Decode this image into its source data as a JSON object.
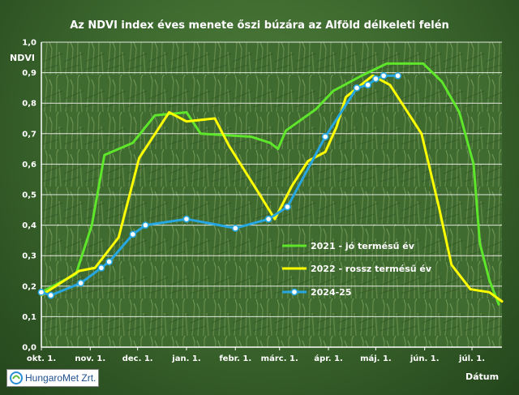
{
  "chart_data": {
    "type": "line",
    "title": "Az NDVI index éves menete őszi búzára az Alföld délkeleti felén",
    "ylabel": "NDVI",
    "xlabel": "Dátum",
    "ylim": [
      0,
      1
    ],
    "yticks": [
      "0,0",
      "0,1",
      "0,2",
      "0,3",
      "0,4",
      "0,5",
      "0,6",
      "0,7",
      "0,8",
      "0,9",
      "1,0"
    ],
    "xlim": [
      "2024-10-01",
      "2025-07-20"
    ],
    "xticks": [
      {
        "date": "2024-10-01",
        "label": "okt. 1."
      },
      {
        "date": "2024-11-01",
        "label": "nov. 1."
      },
      {
        "date": "2024-12-01",
        "label": "dec. 1."
      },
      {
        "date": "2025-01-01",
        "label": "jan. 1."
      },
      {
        "date": "2025-02-01",
        "label": "febr. 1."
      },
      {
        "date": "2025-03-01",
        "label": "márc. 1."
      },
      {
        "date": "2025-04-01",
        "label": "ápr. 1."
      },
      {
        "date": "2025-05-01",
        "label": "máj. 1."
      },
      {
        "date": "2025-06-01",
        "label": "jún. 1."
      },
      {
        "date": "2025-07-01",
        "label": "júl. 1."
      }
    ],
    "grid": true,
    "legend": "right",
    "series": [
      {
        "name": "2021 - jó termésű év",
        "color": "#5ee62a",
        "markers": false,
        "points": [
          [
            "2024-10-01",
            0.18
          ],
          [
            "2024-10-23",
            0.24
          ],
          [
            "2024-11-02",
            0.4
          ],
          [
            "2024-11-10",
            0.63
          ],
          [
            "2024-11-28",
            0.67
          ],
          [
            "2024-12-12",
            0.76
          ],
          [
            "2025-01-01",
            0.77
          ],
          [
            "2025-01-10",
            0.7
          ],
          [
            "2025-02-11",
            0.69
          ],
          [
            "2025-02-23",
            0.67
          ],
          [
            "2025-02-28",
            0.65
          ],
          [
            "2025-03-05",
            0.71
          ],
          [
            "2025-03-24",
            0.78
          ],
          [
            "2025-04-04",
            0.84
          ],
          [
            "2025-04-22",
            0.89
          ],
          [
            "2025-05-08",
            0.93
          ],
          [
            "2025-05-17",
            0.93
          ],
          [
            "2025-05-31",
            0.93
          ],
          [
            "2025-06-12",
            0.87
          ],
          [
            "2025-06-23",
            0.77
          ],
          [
            "2025-07-02",
            0.6
          ],
          [
            "2025-07-06",
            0.34
          ],
          [
            "2025-07-12",
            0.22
          ],
          [
            "2025-07-18",
            0.14
          ]
        ]
      },
      {
        "name": "2022 - rossz termésű év",
        "color": "#ffff00",
        "markers": false,
        "points": [
          [
            "2024-10-01",
            0.17
          ],
          [
            "2024-10-25",
            0.25
          ],
          [
            "2024-11-04",
            0.26
          ],
          [
            "2024-11-19",
            0.36
          ],
          [
            "2024-12-02",
            0.62
          ],
          [
            "2024-12-21",
            0.77
          ],
          [
            "2025-01-01",
            0.74
          ],
          [
            "2025-01-19",
            0.75
          ],
          [
            "2025-01-28",
            0.66
          ],
          [
            "2025-02-14",
            0.52
          ],
          [
            "2025-02-26",
            0.42
          ],
          [
            "2025-03-09",
            0.53
          ],
          [
            "2025-03-19",
            0.61
          ],
          [
            "2025-03-30",
            0.64
          ],
          [
            "2025-04-06",
            0.72
          ],
          [
            "2025-04-12",
            0.82
          ],
          [
            "2025-04-29",
            0.89
          ],
          [
            "2025-05-10",
            0.86
          ],
          [
            "2025-05-30",
            0.7
          ],
          [
            "2025-06-10",
            0.46
          ],
          [
            "2025-06-18",
            0.27
          ],
          [
            "2025-06-30",
            0.19
          ],
          [
            "2025-07-12",
            0.18
          ],
          [
            "2025-07-20",
            0.15
          ]
        ]
      },
      {
        "name": "2024-25",
        "color": "#27a7e1",
        "markers": true,
        "points": [
          [
            "2024-10-01",
            0.18
          ],
          [
            "2024-10-07",
            0.17
          ],
          [
            "2024-10-26",
            0.21
          ],
          [
            "2024-11-08",
            0.26
          ],
          [
            "2024-11-13",
            0.28
          ],
          [
            "2024-11-28",
            0.37
          ],
          [
            "2024-12-06",
            0.4
          ],
          [
            "2025-01-01",
            0.42
          ],
          [
            "2025-02-01",
            0.39
          ],
          [
            "2025-02-22",
            0.42
          ],
          [
            "2025-03-06",
            0.46
          ],
          [
            "2025-03-30",
            0.69
          ],
          [
            "2025-04-19",
            0.85
          ],
          [
            "2025-04-26",
            0.86
          ],
          [
            "2025-05-01",
            0.88
          ],
          [
            "2025-05-06",
            0.89
          ],
          [
            "2025-05-15",
            0.89
          ]
        ]
      }
    ]
  },
  "logo": {
    "text": "HungaroMet Zrt."
  }
}
